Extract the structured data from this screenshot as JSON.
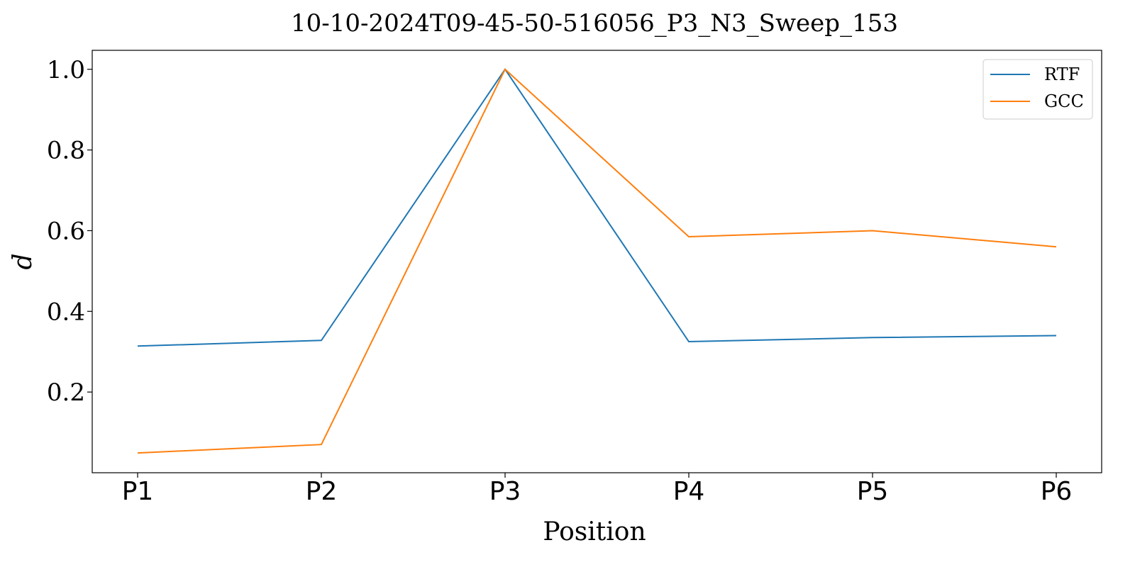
{
  "chart_data": {
    "type": "line",
    "title": "10-10-2024T09-45-50-516056_P3_N3_Sweep_153",
    "xlabel": "Position",
    "ylabel": "d",
    "categories": [
      "P1",
      "P2",
      "P3",
      "P4",
      "P5",
      "P6"
    ],
    "ylim": [
      0.0,
      1.047
    ],
    "yticks": [
      0.2,
      0.4,
      0.6,
      0.8,
      1.0
    ],
    "ytick_labels": [
      "0.2",
      "0.4",
      "0.6",
      "0.8",
      "1.0"
    ],
    "grid": false,
    "legend_position": "top-right",
    "series": [
      {
        "name": "RTF",
        "color": "#1f77b4",
        "values": [
          0.314,
          0.328,
          1.0,
          0.325,
          0.335,
          0.34
        ]
      },
      {
        "name": "GCC",
        "color": "#ff7f0e",
        "values": [
          0.049,
          0.07,
          1.0,
          0.585,
          0.6,
          0.56
        ]
      }
    ]
  }
}
